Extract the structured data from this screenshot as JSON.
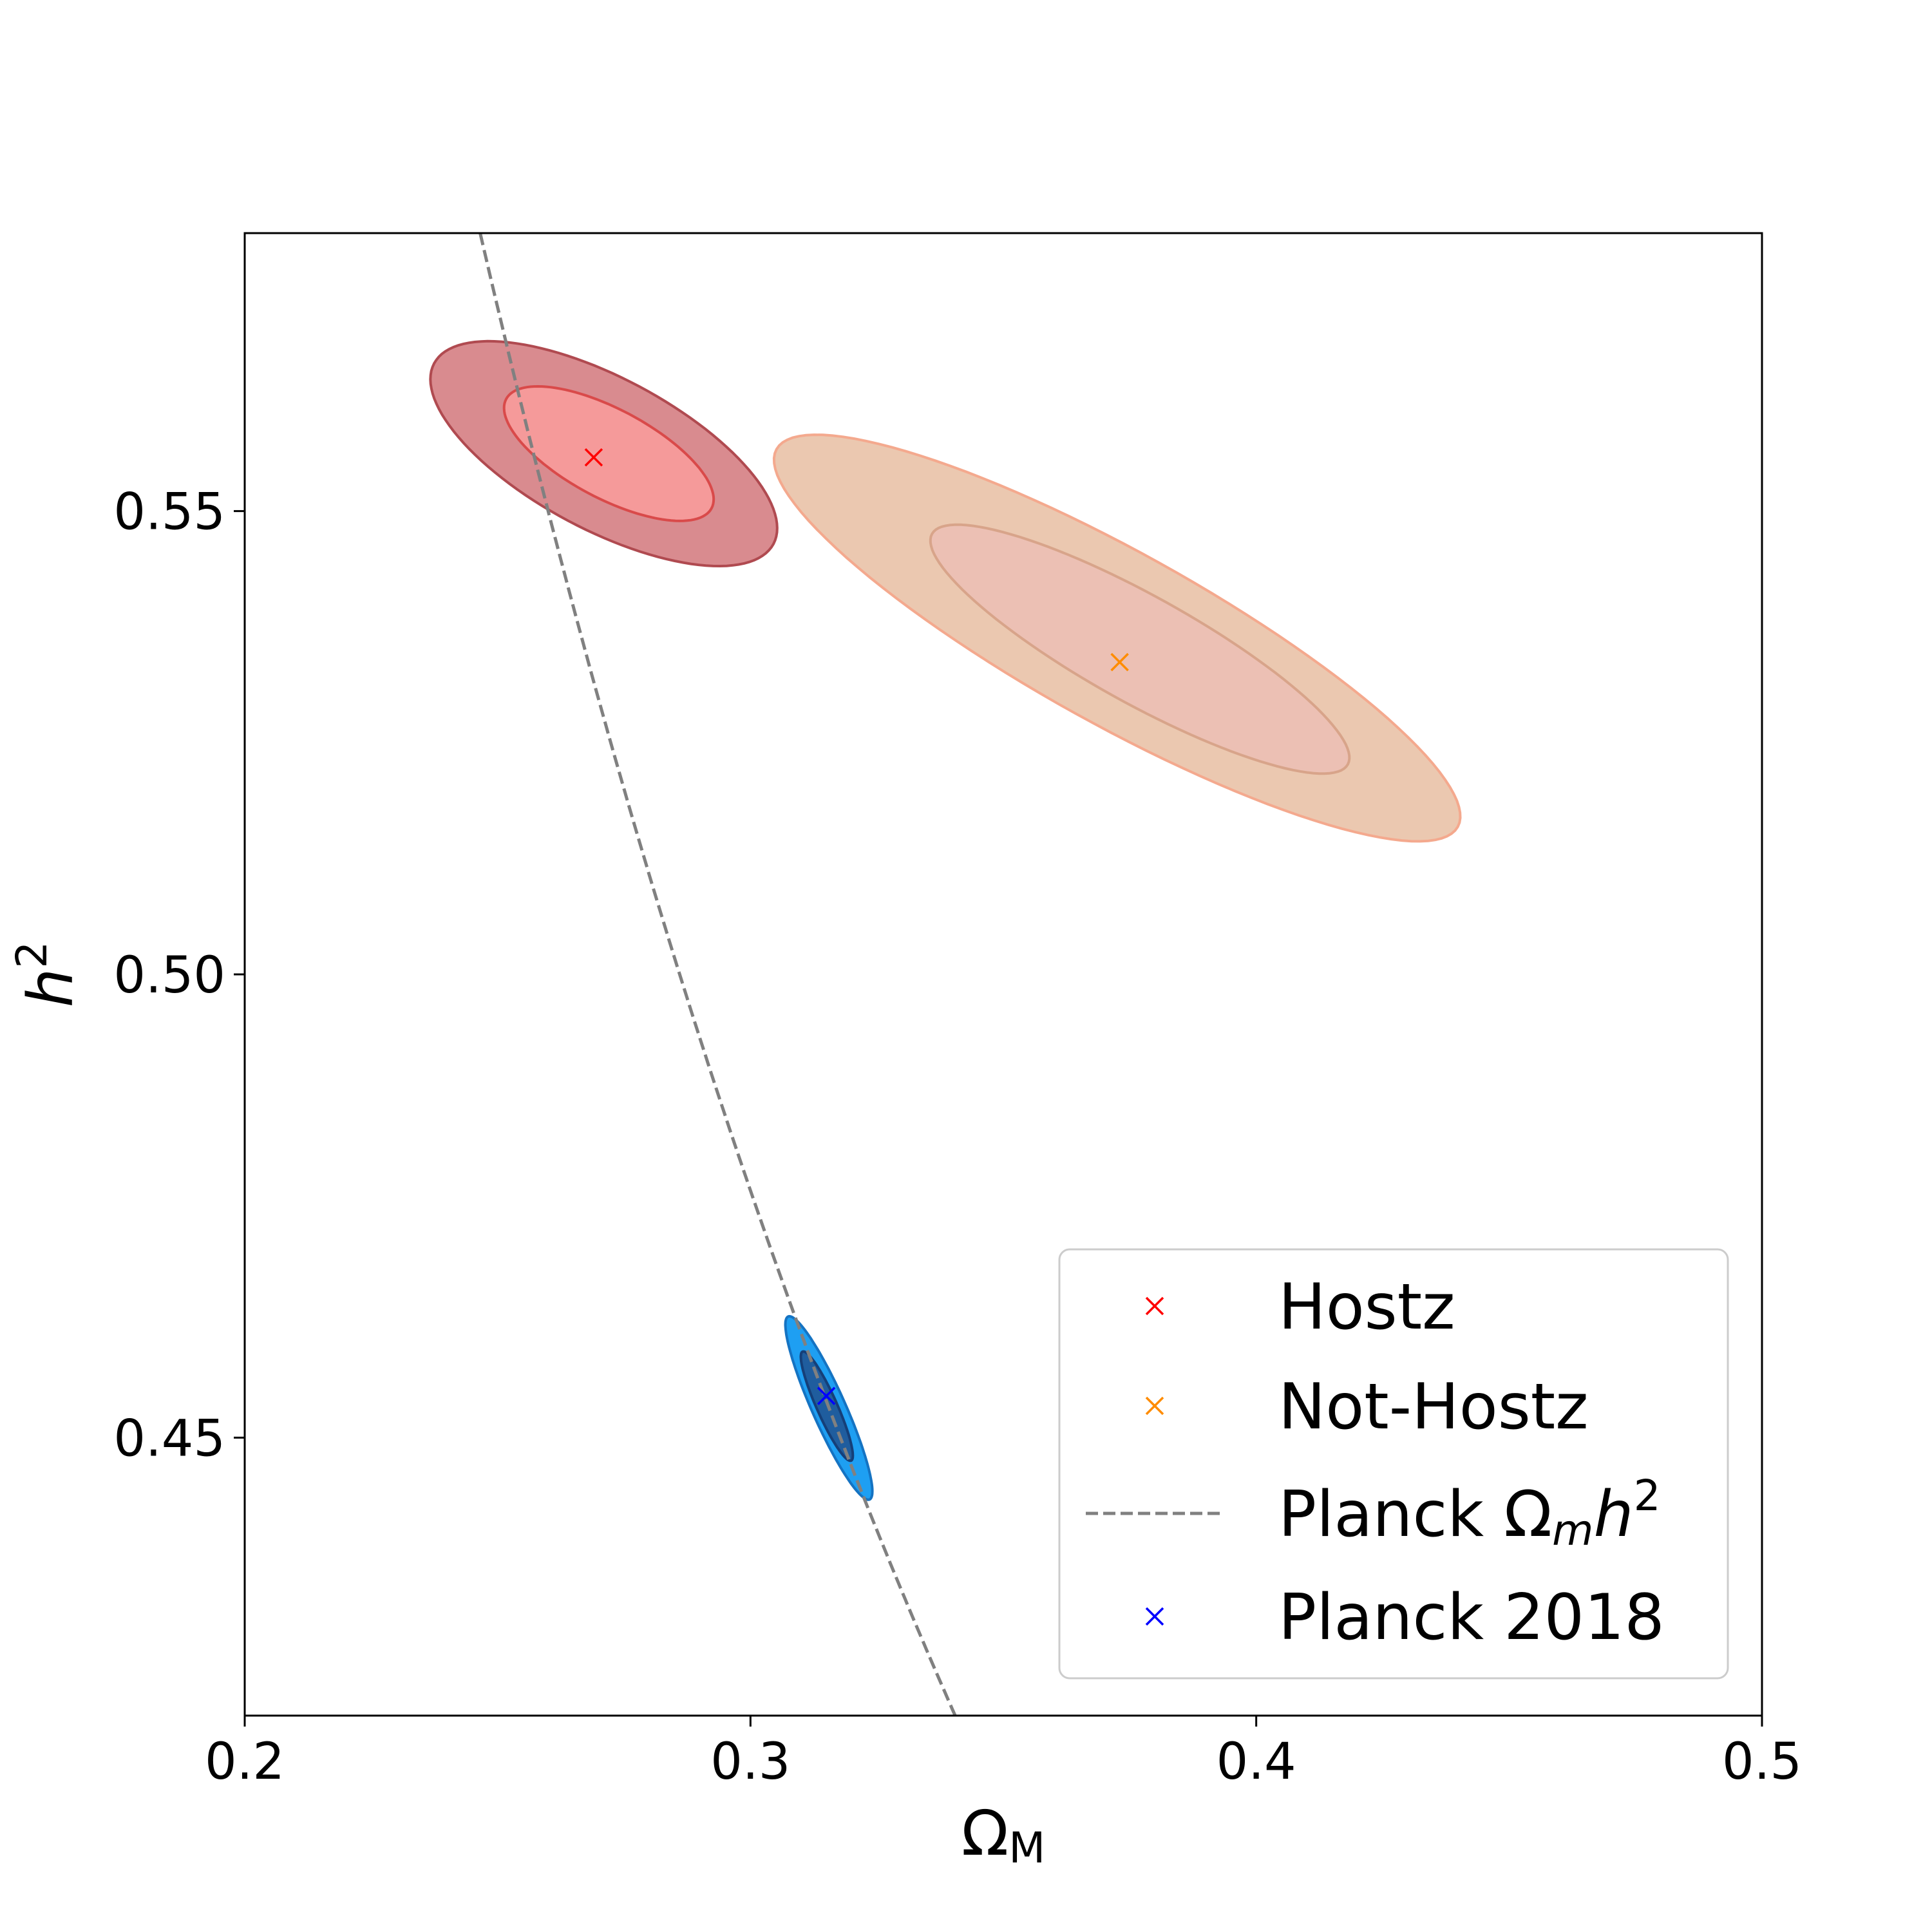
{
  "chart_data": {
    "type": "scatter",
    "xlabel": "Ω",
    "xlabel_sub": "M",
    "ylabel": "h",
    "ylabel_sup": "2",
    "xlim": [
      0.2,
      0.5
    ],
    "ylim": [
      0.42,
      0.58
    ],
    "xticks": [
      "0.2",
      "0.3",
      "0.4",
      "0.5"
    ],
    "xtick_values": [
      0.2,
      0.3,
      0.4,
      0.5
    ],
    "yticks": [
      "0.45",
      "0.50",
      "0.55"
    ],
    "ytick_values": [
      0.45,
      0.5,
      0.55
    ],
    "grid": false,
    "legend_position": "bottom-right",
    "series": [
      {
        "name": "Hostz",
        "marker": "x",
        "color": "#ff0000",
        "best_fit": {
          "x": 0.269,
          "y": 0.5558
        },
        "contours": [
          {
            "level": "outer",
            "fill": "#d98b8f",
            "edge": "#b04a50",
            "center": [
              0.271,
              0.5562
            ],
            "semi_major": 0.038,
            "semi_minor": 0.0082,
            "angle": -28
          },
          {
            "level": "inner",
            "fill": "#f59a9a",
            "edge": "#d94a4a",
            "center": [
              0.272,
              0.5562
            ],
            "semi_major": 0.023,
            "semi_minor": 0.0048,
            "angle": -28
          }
        ]
      },
      {
        "name": "Not-Hostz",
        "marker": "x",
        "color": "#ff8c00",
        "best_fit": {
          "x": 0.373,
          "y": 0.5337
        },
        "contours": [
          {
            "level": "outer",
            "fill": "#ebc8b0",
            "edge": "#f4a98e",
            "center": [
              0.3725,
              0.5363
            ],
            "semi_major": 0.077,
            "semi_minor": 0.0093,
            "angle": -29
          },
          {
            "level": "inner",
            "fill": "#ecc0b4",
            "edge": "#d8a48a",
            "center": [
              0.377,
              0.5351
            ],
            "semi_major": 0.047,
            "semi_minor": 0.0058,
            "angle": -29
          }
        ]
      },
      {
        "name": "Planck 2018",
        "marker": "x",
        "color": "#0000ff",
        "best_fit": {
          "x": 0.315,
          "y": 0.4545
        },
        "contours": [
          {
            "level": "outer",
            "fill": "#1e9ff2",
            "edge": "#1573c2",
            "center": [
              0.3155,
              0.4532
            ],
            "semi_major": 0.0198,
            "semi_minor": 0.0018,
            "angle": -66
          },
          {
            "level": "inner",
            "fill": "#1f5d9e",
            "edge": "#153f78",
            "center": [
              0.3151,
              0.4534
            ],
            "semi_major": 0.0118,
            "semi_minor": 0.0011,
            "angle": -66
          }
        ]
      }
    ],
    "reference_curve": {
      "name": "Planck Ω",
      "name_sub": "m",
      "name_italic": "h",
      "name_sup": "2",
      "style": "dashed",
      "color": "#808080",
      "omega_m_h2": 0.143
    },
    "legend_order": [
      "Hostz",
      "Not-Hostz",
      "Planck Ωmh2",
      "Planck 2018"
    ]
  }
}
